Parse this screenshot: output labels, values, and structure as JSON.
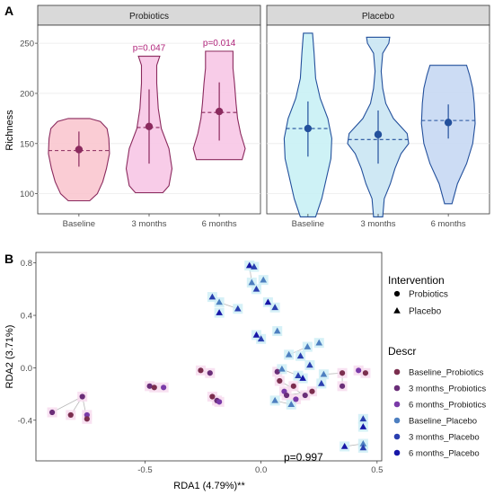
{
  "panel_a_label": "A",
  "panel_b_label": "B",
  "chart_data": [
    {
      "type": "violin",
      "ylabel": "Richness",
      "ylim": [
        80,
        268
      ],
      "yticks": [
        100,
        150,
        200,
        250
      ],
      "facets": [
        {
          "title": "Probiotics",
          "fill": "#f7c9e3",
          "line": "#8b2a5e",
          "groups": [
            {
              "label": "Baseline",
              "fill": "#f9c6cf",
              "mean": 144,
              "median": 143,
              "lo": 127,
              "hi": 162,
              "min": 93,
              "max": 175,
              "profile": [
                [
                  93,
                  0.35
                ],
                [
                  100,
                  0.6
                ],
                [
                  112,
                  0.78
                ],
                [
                  125,
                  0.9
                ],
                [
                  140,
                  1.0
                ],
                [
                  155,
                  0.98
                ],
                [
                  165,
                  0.92
                ],
                [
                  172,
                  0.7
                ],
                [
                  175,
                  0.35
                ]
              ]
            },
            {
              "label": "3 months",
              "fill": "#f7c6e6",
              "mean": 167,
              "median": 166,
              "lo": 130,
              "hi": 204,
              "min": 101,
              "max": 237,
              "profile": [
                [
                  101,
                  0.45
                ],
                [
                  108,
                  0.65
                ],
                [
                  125,
                  0.75
                ],
                [
                  145,
                  0.65
                ],
                [
                  165,
                  0.4
                ],
                [
                  185,
                  0.3
                ],
                [
                  210,
                  0.25
                ],
                [
                  228,
                  0.25
                ],
                [
                  237,
                  0.35
                ]
              ],
              "annotation": "p=0.047"
            },
            {
              "label": "6 months",
              "fill": "#f7c6e6",
              "mean": 182,
              "median": 181,
              "lo": 153,
              "hi": 211,
              "min": 134,
              "max": 242,
              "profile": [
                [
                  134,
                  0.75
                ],
                [
                  145,
                  0.85
                ],
                [
                  160,
                  0.7
                ],
                [
                  175,
                  0.6
                ],
                [
                  190,
                  0.55
                ],
                [
                  210,
                  0.5
                ],
                [
                  225,
                  0.45
                ],
                [
                  242,
                  0.45
                ]
              ],
              "annotation": "p=0.014"
            }
          ]
        },
        {
          "title": "Placebo",
          "fill": "#cbe9f3",
          "line": "#23509c",
          "groups": [
            {
              "label": "Baseline",
              "fill": "#c9f1f5",
              "mean": 165,
              "median": 165,
              "lo": 137,
              "hi": 192,
              "min": 77,
              "max": 260,
              "profile": [
                [
                  77,
                  0.25
                ],
                [
                  95,
                  0.45
                ],
                [
                  115,
                  0.6
                ],
                [
                  135,
                  0.75
                ],
                [
                  155,
                  0.78
                ],
                [
                  175,
                  0.65
                ],
                [
                  195,
                  0.4
                ],
                [
                  215,
                  0.25
                ],
                [
                  240,
                  0.2
                ],
                [
                  260,
                  0.15
                ]
              ]
            },
            {
              "label": "3 months",
              "fill": "#cae6f3",
              "mean": 159,
              "median": 154,
              "lo": 130,
              "hi": 183,
              "min": 77,
              "max": 256,
              "profile": [
                [
                  77,
                  0.15
                ],
                [
                  95,
                  0.2
                ],
                [
                  110,
                  0.4
                ],
                [
                  125,
                  0.55
                ],
                [
                  140,
                  0.75
                ],
                [
                  150,
                  1.0
                ],
                [
                  160,
                  0.95
                ],
                [
                  175,
                  0.5
                ],
                [
                  190,
                  0.25
                ],
                [
                  205,
                  0.15
                ],
                [
                  222,
                  0.1
                ],
                [
                  240,
                  0.15
                ],
                [
                  250,
                  0.35
                ],
                [
                  256,
                  0.38
                ]
              ]
            },
            {
              "label": "6 months",
              "fill": "#c7d8f3",
              "mean": 171,
              "median": 173,
              "lo": 155,
              "hi": 189,
              "min": 90,
              "max": 228,
              "profile": [
                [
                  90,
                  0.12
                ],
                [
                  110,
                  0.3
                ],
                [
                  130,
                  0.6
                ],
                [
                  150,
                  0.8
                ],
                [
                  170,
                  0.88
                ],
                [
                  190,
                  0.85
                ],
                [
                  205,
                  0.8
                ],
                [
                  218,
                  0.7
                ],
                [
                  228,
                  0.6
                ]
              ]
            }
          ]
        }
      ]
    },
    {
      "type": "scatter",
      "xlabel": "RDA1 (4.79%)**",
      "ylabel": "RDA2 (3.71%)",
      "xlim": [
        -0.97,
        0.52
      ],
      "ylim": [
        -0.71,
        0.88
      ],
      "xticks": [
        -0.5,
        0.0,
        0.5
      ],
      "yticks": [
        -0.4,
        0.0,
        0.4,
        0.8
      ],
      "annotation": "p=0.997",
      "legend": {
        "intervention_title": "Intervention",
        "intervention": [
          {
            "label": "Probiotics",
            "shape": "circle"
          },
          {
            "label": "Placebo",
            "shape": "triangle"
          }
        ],
        "descr_title": "Descr",
        "descr": [
          {
            "label": "Baseline_Probiotics",
            "color": "#7b2e4e",
            "shape": "circle"
          },
          {
            "label": "3 months_Probiotics",
            "color": "#6a2e78",
            "shape": "circle"
          },
          {
            "label": "6 months_Probiotics",
            "color": "#7a3aa8",
            "shape": "circle"
          },
          {
            "label": "Baseline_Placebo",
            "color": "#4d7fc0",
            "shape": "circle"
          },
          {
            "label": "3 months_Placebo",
            "color": "#2a3fb0",
            "shape": "circle"
          },
          {
            "label": "6 months_Placebo",
            "color": "#1717a8",
            "shape": "circle"
          }
        ]
      },
      "points": [
        {
          "x": -0.9,
          "y": -0.34,
          "g": 1
        },
        {
          "x": -0.77,
          "y": -0.22,
          "g": 1
        },
        {
          "x": -0.82,
          "y": -0.36,
          "g": 0
        },
        {
          "x": -0.75,
          "y": -0.36,
          "g": 2
        },
        {
          "x": -0.75,
          "y": -0.39,
          "g": 0
        },
        {
          "x": -0.48,
          "y": -0.14,
          "g": 1
        },
        {
          "x": -0.46,
          "y": -0.15,
          "g": 0
        },
        {
          "x": -0.42,
          "y": -0.15,
          "g": 2
        },
        {
          "x": -0.26,
          "y": -0.02,
          "g": 0
        },
        {
          "x": -0.22,
          "y": -0.04,
          "g": 1
        },
        {
          "x": -0.21,
          "y": -0.22,
          "g": 0
        },
        {
          "x": -0.19,
          "y": -0.25,
          "g": 1
        },
        {
          "x": -0.18,
          "y": -0.26,
          "g": 2
        },
        {
          "x": 0.07,
          "y": -0.03,
          "g": 1
        },
        {
          "x": 0.08,
          "y": -0.1,
          "g": 0
        },
        {
          "x": 0.1,
          "y": -0.18,
          "g": 2
        },
        {
          "x": 0.11,
          "y": -0.21,
          "g": 1
        },
        {
          "x": 0.14,
          "y": -0.14,
          "g": 0
        },
        {
          "x": 0.15,
          "y": -0.24,
          "g": 2
        },
        {
          "x": 0.19,
          "y": -0.21,
          "g": 1
        },
        {
          "x": 0.22,
          "y": -0.18,
          "g": 0
        },
        {
          "x": 0.35,
          "y": -0.04,
          "g": 0
        },
        {
          "x": 0.35,
          "y": -0.14,
          "g": 1
        },
        {
          "x": 0.42,
          "y": -0.02,
          "g": 2
        },
        {
          "x": 0.45,
          "y": -0.04,
          "g": 0
        },
        {
          "x": -0.21,
          "y": 0.54,
          "g": 4,
          "s": "t"
        },
        {
          "x": -0.18,
          "y": 0.5,
          "g": 3,
          "s": "t"
        },
        {
          "x": -0.18,
          "y": 0.42,
          "g": 5,
          "s": "t"
        },
        {
          "x": -0.1,
          "y": 0.45,
          "g": 4,
          "s": "t"
        },
        {
          "x": -0.05,
          "y": 0.78,
          "g": 5,
          "s": "t"
        },
        {
          "x": -0.03,
          "y": 0.77,
          "g": 4,
          "s": "t"
        },
        {
          "x": -0.04,
          "y": 0.65,
          "g": 3,
          "s": "t"
        },
        {
          "x": -0.02,
          "y": 0.6,
          "g": 4,
          "s": "t"
        },
        {
          "x": 0.01,
          "y": 0.67,
          "g": 3,
          "s": "t"
        },
        {
          "x": 0.03,
          "y": 0.5,
          "g": 5,
          "s": "t"
        },
        {
          "x": 0.06,
          "y": 0.46,
          "g": 4,
          "s": "t"
        },
        {
          "x": -0.02,
          "y": 0.25,
          "g": 5,
          "s": "t"
        },
        {
          "x": 0.0,
          "y": 0.22,
          "g": 4,
          "s": "t"
        },
        {
          "x": 0.07,
          "y": 0.28,
          "g": 3,
          "s": "t"
        },
        {
          "x": 0.12,
          "y": 0.1,
          "g": 3,
          "s": "t"
        },
        {
          "x": 0.17,
          "y": 0.09,
          "g": 4,
          "s": "t"
        },
        {
          "x": 0.2,
          "y": 0.16,
          "g": 3,
          "s": "t"
        },
        {
          "x": 0.25,
          "y": 0.19,
          "g": 3,
          "s": "t"
        },
        {
          "x": 0.21,
          "y": 0.02,
          "g": 4,
          "s": "t"
        },
        {
          "x": 0.09,
          "y": -0.01,
          "g": 3,
          "s": "t"
        },
        {
          "x": 0.16,
          "y": -0.06,
          "g": 4,
          "s": "t"
        },
        {
          "x": 0.18,
          "y": -0.08,
          "g": 5,
          "s": "t"
        },
        {
          "x": 0.27,
          "y": -0.05,
          "g": 3,
          "s": "t"
        },
        {
          "x": 0.26,
          "y": -0.12,
          "g": 4,
          "s": "t"
        },
        {
          "x": 0.06,
          "y": -0.25,
          "g": 3,
          "s": "t"
        },
        {
          "x": 0.13,
          "y": -0.28,
          "g": 3,
          "s": "t"
        },
        {
          "x": 0.36,
          "y": -0.6,
          "g": 5,
          "s": "t"
        },
        {
          "x": 0.44,
          "y": -0.58,
          "g": 3,
          "s": "t"
        },
        {
          "x": 0.44,
          "y": -0.61,
          "g": 4,
          "s": "t"
        },
        {
          "x": 0.44,
          "y": -0.39,
          "g": 4,
          "s": "t"
        },
        {
          "x": 0.44,
          "y": -0.45,
          "g": 5,
          "s": "t"
        }
      ],
      "links": [
        [
          -0.9,
          -0.34,
          -0.77,
          -0.22
        ],
        [
          -0.82,
          -0.36,
          -0.77,
          -0.22
        ],
        [
          -0.75,
          -0.39,
          -0.77,
          -0.22
        ],
        [
          -0.48,
          -0.14,
          -0.42,
          -0.15
        ],
        [
          -0.26,
          -0.02,
          -0.22,
          -0.04
        ],
        [
          -0.21,
          -0.22,
          -0.18,
          -0.26
        ],
        [
          0.08,
          -0.1,
          0.19,
          -0.21
        ],
        [
          0.11,
          -0.21,
          0.22,
          -0.18
        ],
        [
          0.35,
          -0.14,
          0.35,
          -0.04
        ],
        [
          0.27,
          -0.05,
          0.35,
          -0.04
        ],
        [
          -0.05,
          0.78,
          -0.04,
          0.65
        ],
        [
          -0.18,
          0.5,
          -0.1,
          0.45
        ],
        [
          0.12,
          0.1,
          0.2,
          0.16
        ],
        [
          0.09,
          -0.01,
          0.16,
          -0.06
        ],
        [
          0.06,
          -0.25,
          0.13,
          -0.28
        ],
        [
          0.44,
          -0.58,
          0.36,
          -0.6
        ],
        [
          0.44,
          -0.39,
          0.44,
          -0.45
        ]
      ]
    }
  ]
}
